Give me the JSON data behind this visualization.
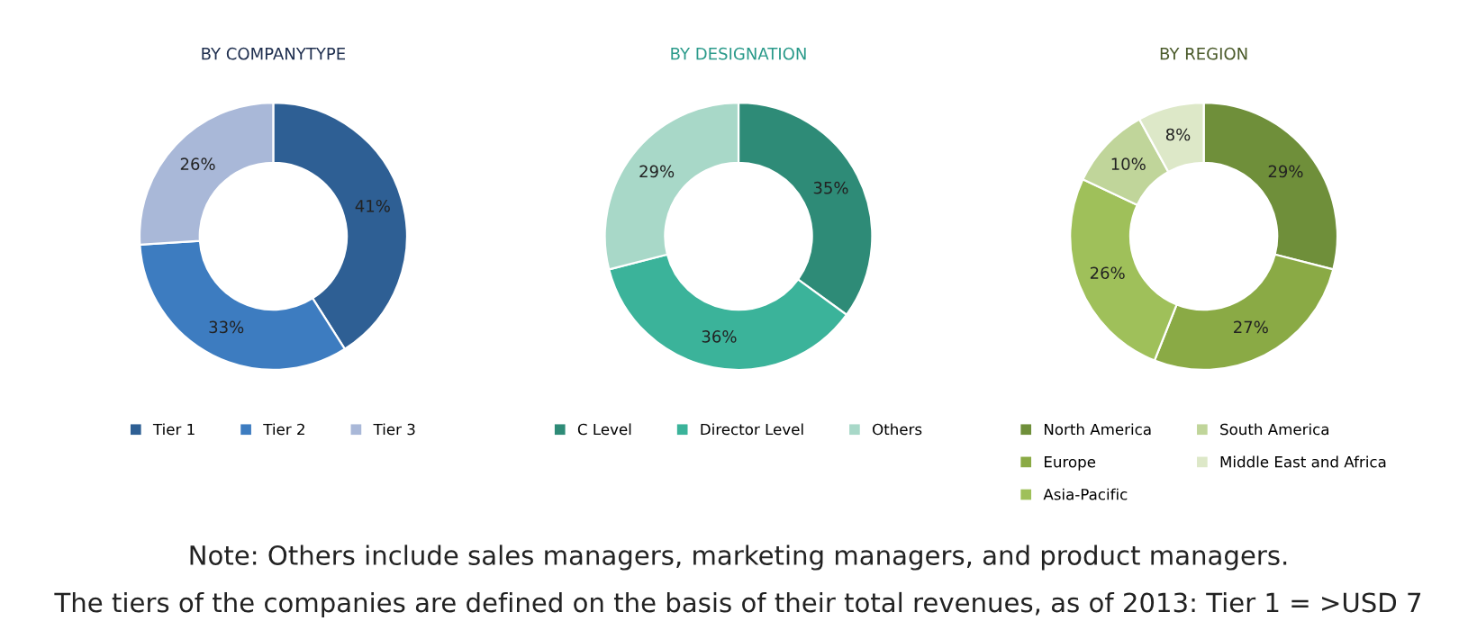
{
  "chart_data": [
    {
      "type": "donut",
      "title": "BY COMPANYTYPE",
      "categories": [
        "Tier 1",
        "Tier 2",
        "Tier 3"
      ],
      "values": [
        41,
        33,
        26
      ],
      "colors": [
        "#2e5f94",
        "#3d7cc0",
        "#a9b8d8"
      ],
      "value_labels": [
        "41%",
        "33%",
        "26%"
      ],
      "legend": "bottom"
    },
    {
      "type": "donut",
      "title": "BY DESIGNATION",
      "categories": [
        "C Level",
        "Director Level",
        "Others"
      ],
      "values": [
        35,
        36,
        29
      ],
      "colors": [
        "#2e8b77",
        "#3bb39a",
        "#a8d8c8"
      ],
      "value_labels": [
        "35%",
        "36%",
        "29%"
      ],
      "legend": "bottom"
    },
    {
      "type": "donut",
      "title": "BY REGION",
      "categories": [
        "North America",
        "Europe",
        "Asia-Pacific",
        "South America",
        "Middle East and Africa"
      ],
      "values": [
        29,
        27,
        26,
        10,
        8
      ],
      "colors": [
        "#6f8f3a",
        "#8aaa45",
        "#9fc05a",
        "#c0d59a",
        "#dde8c8"
      ],
      "value_labels": [
        "29%",
        "27%",
        "26%",
        "10%",
        "8%"
      ],
      "legend": "bottom",
      "annotations": [
        "Note: Others include sales managers, marketing managers, and product managers.",
        "The tiers of the companies are defined on the basis of their total revenues, as of 2013: Tier 1 = >USD 7"
      ]
    }
  ]
}
